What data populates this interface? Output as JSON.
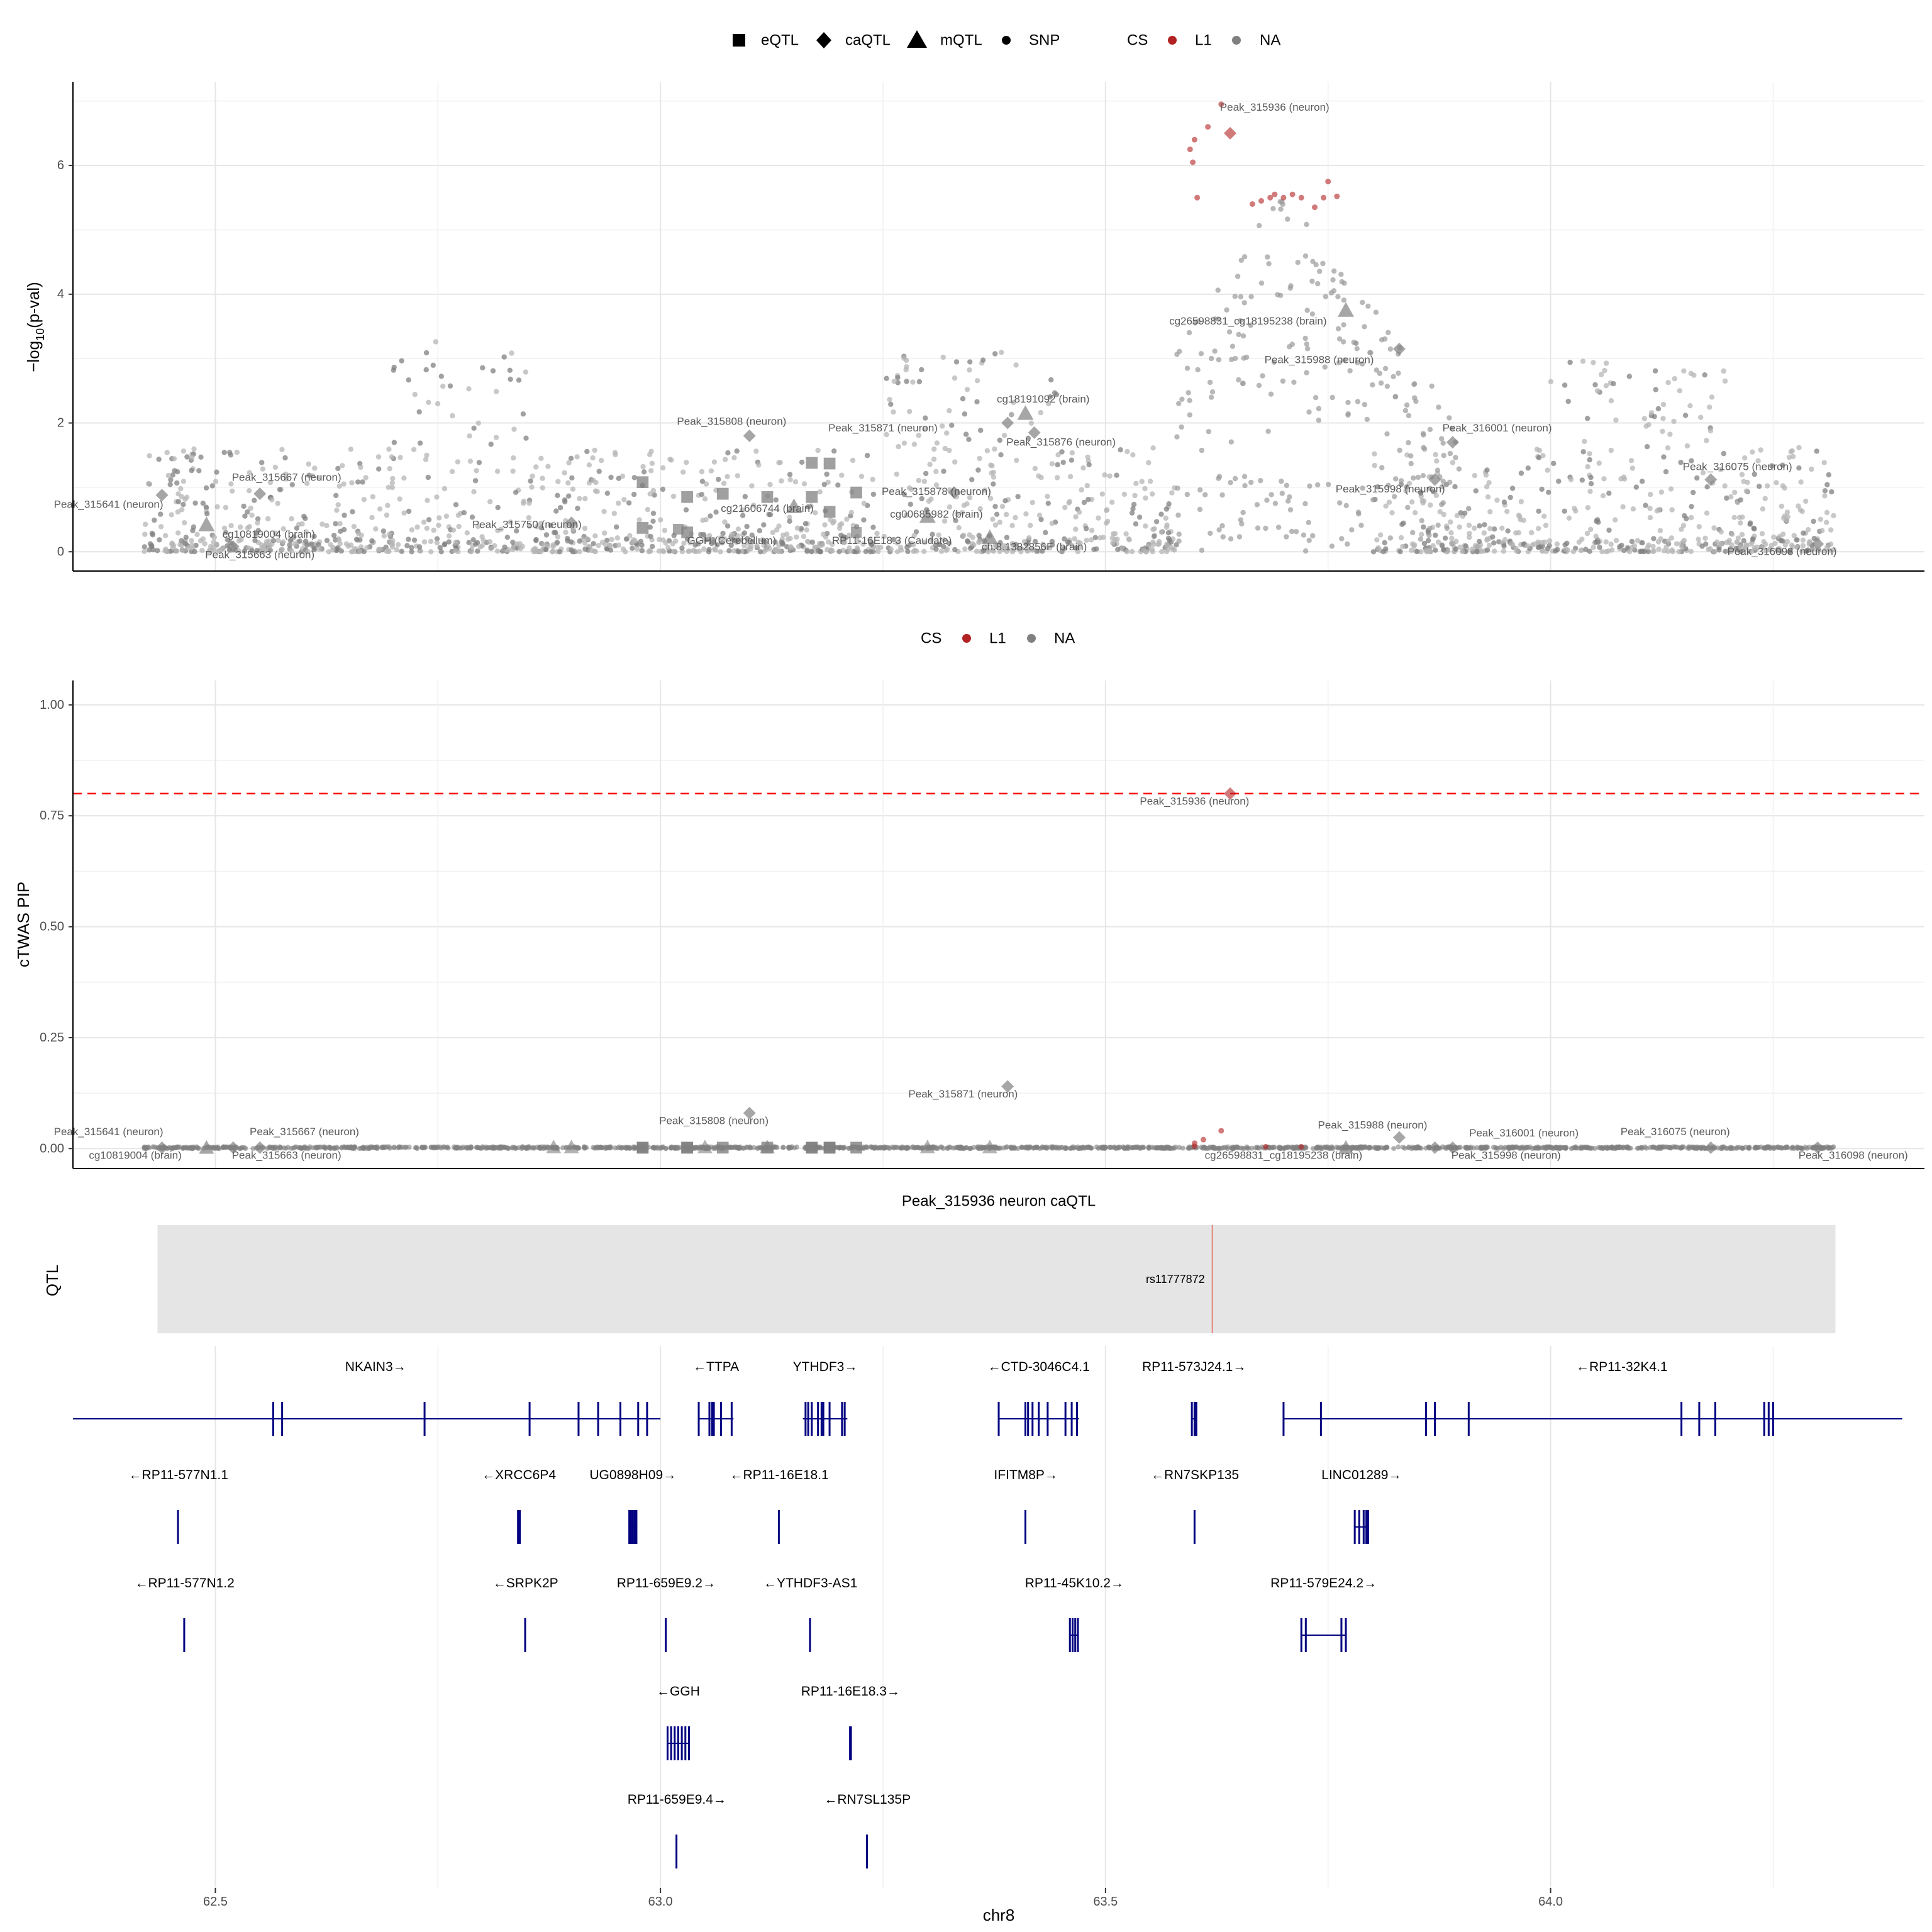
{
  "chart_data": {
    "type": "scatter",
    "x_axis": {
      "label": "chr8",
      "ticks": [
        62.5,
        63.0,
        63.5,
        64.0
      ],
      "tick_labels": [
        "62.5",
        "63.0",
        "63.5",
        "64.0"
      ],
      "range": [
        62.34,
        64.42
      ]
    },
    "colors": {
      "cs_L1": "#b22222",
      "cs_NA": "#808080",
      "threshold": "#ff0000",
      "gene": "#000080",
      "qtl_fill": "#e5e5e5",
      "qtl_snp": "#e8847a"
    },
    "legend_top": {
      "shapes": [
        {
          "label": "eQTL",
          "shape": "square"
        },
        {
          "label": "caQTL",
          "shape": "diamond"
        },
        {
          "label": "mQTL",
          "shape": "triangle"
        },
        {
          "label": "SNP",
          "shape": "dot"
        }
      ],
      "cs_title": "CS",
      "cs": [
        {
          "label": "L1",
          "color": "#b22222"
        },
        {
          "label": "NA",
          "color": "#808080"
        }
      ]
    },
    "legend_mid": {
      "cs_title": "CS",
      "cs": [
        {
          "label": "L1",
          "color": "#b22222"
        },
        {
          "label": "NA",
          "color": "#808080"
        }
      ]
    },
    "panel1": {
      "ylabel": "−log10(p-val)",
      "ylim": [
        -0.3,
        7.3
      ],
      "yticks": [
        0,
        2,
        4,
        6
      ],
      "ytick_labels": [
        "0",
        "2",
        "4",
        "6"
      ],
      "features": [
        {
          "label": "Peak_315936 (neuron)",
          "x": 63.64,
          "y": 6.5,
          "shape": "diamond",
          "cs": "L1",
          "lx": 63.69,
          "ly": 6.85
        },
        {
          "label": "cg26598831_cg18195238 (brain)",
          "x": 63.77,
          "y": 3.75,
          "shape": "triangle",
          "cs": "NA",
          "lx": 63.66,
          "ly": 3.53
        },
        {
          "label": "Peak_315988 (neuron)",
          "x": 63.83,
          "y": 3.15,
          "shape": "diamond",
          "cs": "NA",
          "lx": 63.74,
          "ly": 2.93
        },
        {
          "label": "cg18191092 (brain)",
          "x": 63.41,
          "y": 2.15,
          "shape": "triangle",
          "cs": "NA",
          "lx": 63.43,
          "ly": 2.32
        },
        {
          "label": "Peak_315808 (neuron)",
          "x": 63.1,
          "y": 1.8,
          "shape": "diamond",
          "cs": "NA",
          "lx": 63.08,
          "ly": 1.97
        },
        {
          "label": "Peak_315871 (neuron)",
          "x": 63.39,
          "y": 2.0,
          "shape": "diamond",
          "cs": "NA",
          "lx": 63.25,
          "ly": 1.87
        },
        {
          "label": "Peak_315876 (neuron)",
          "x": 63.42,
          "y": 1.85,
          "shape": "diamond",
          "cs": "NA",
          "lx": 63.45,
          "ly": 1.65
        },
        {
          "label": "Peak_316001 (neuron)",
          "x": 63.89,
          "y": 1.7,
          "shape": "diamond",
          "cs": "NA",
          "lx": 63.94,
          "ly": 1.87
        },
        {
          "label": "Peak_316075 (neuron)",
          "x": 64.18,
          "y": 1.12,
          "shape": "diamond",
          "cs": "NA",
          "lx": 64.21,
          "ly": 1.27
        },
        {
          "label": "Peak_315667 (neuron)",
          "x": 62.55,
          "y": 0.9,
          "shape": "diamond",
          "cs": "NA",
          "lx": 62.58,
          "ly": 1.1
        },
        {
          "label": "Peak_315641 (neuron)",
          "x": 62.44,
          "y": 0.88,
          "shape": "diamond",
          "cs": "NA",
          "lx": 62.38,
          "ly": 0.68
        },
        {
          "label": "Peak_315998 (neuron)",
          "x": 63.87,
          "y": 1.12,
          "shape": "diamond",
          "cs": "NA",
          "lx": 63.82,
          "ly": 0.92
        },
        {
          "label": "Peak_315878 (neuron)",
          "x": 63.33,
          "y": 0.92,
          "shape": "diamond",
          "cs": "NA",
          "lx": 63.31,
          "ly": 0.88
        },
        {
          "label": "cg21606744 (brain)",
          "x": 63.15,
          "y": 0.7,
          "shape": "triangle",
          "cs": "NA",
          "lx": 63.12,
          "ly": 0.62
        },
        {
          "label": "cg00685982 (brain)",
          "x": 63.3,
          "y": 0.55,
          "shape": "triangle",
          "cs": "NA",
          "lx": 63.31,
          "ly": 0.53
        },
        {
          "label": "Peak_315750 (neuron)",
          "x": 62.9,
          "y": 0.45,
          "shape": "diamond",
          "cs": "NA",
          "lx": 62.85,
          "ly": 0.37
        },
        {
          "label": "cg10819004 (brain)",
          "x": 62.49,
          "y": 0.42,
          "shape": "triangle",
          "cs": "NA",
          "lx": 62.56,
          "ly": 0.22
        },
        {
          "label": "GGH (Cerebellum)",
          "x": 63.02,
          "y": 0.35,
          "shape": "square",
          "cs": "NA",
          "lx": 63.08,
          "ly": 0.12
        },
        {
          "label": "RP11-16E18.3 (Caudate)",
          "x": 63.22,
          "y": 0.3,
          "shape": "square",
          "cs": "NA",
          "lx": 63.26,
          "ly": 0.12
        },
        {
          "label": "ch.8.1382856F (brain)",
          "x": 63.37,
          "y": 0.22,
          "shape": "triangle",
          "cs": "NA",
          "lx": 63.42,
          "ly": 0.02
        },
        {
          "label": "Peak_315663 (neuron)",
          "x": 62.52,
          "y": 0.08,
          "shape": "diamond",
          "cs": "NA",
          "lx": 62.55,
          "ly": -0.1
        },
        {
          "label": "Peak_316098 (neuron)",
          "x": 64.3,
          "y": 0.12,
          "shape": "diamond",
          "cs": "NA",
          "lx": 64.26,
          "ly": -0.05
        }
      ],
      "eqtl_squares": [
        {
          "x": 62.98,
          "y": 1.08
        },
        {
          "x": 63.03,
          "y": 0.85
        },
        {
          "x": 63.07,
          "y": 0.9
        },
        {
          "x": 63.12,
          "y": 0.85
        },
        {
          "x": 63.17,
          "y": 1.38
        },
        {
          "x": 63.19,
          "y": 1.37
        },
        {
          "x": 63.22,
          "y": 0.92
        },
        {
          "x": 63.19,
          "y": 0.62
        },
        {
          "x": 62.98,
          "y": 0.37
        },
        {
          "x": 63.17,
          "y": 0.85
        },
        {
          "x": 63.03,
          "y": 0.3
        }
      ]
    },
    "panel2": {
      "ylabel": "cTWAS PIP",
      "ylim": [
        -0.045,
        1.055
      ],
      "yticks": [
        0,
        0.25,
        0.5,
        0.75,
        1.0
      ],
      "ytick_labels": [
        "0.00",
        "0.25",
        "0.50",
        "0.75",
        "1.00"
      ],
      "threshold": 0.8,
      "features": [
        {
          "label": "Peak_315936 (neuron)",
          "x": 63.64,
          "y": 0.8,
          "shape": "diamond",
          "cs": "L1",
          "lx": 63.6,
          "ly": 0.775
        },
        {
          "label": "Peak_315871 (neuron)",
          "x": 63.39,
          "y": 0.14,
          "shape": "diamond",
          "cs": "NA",
          "lx": 63.34,
          "ly": 0.115
        },
        {
          "label": "Peak_315808 (neuron)",
          "x": 63.1,
          "y": 0.08,
          "shape": "diamond",
          "cs": "NA",
          "lx": 63.06,
          "ly": 0.055
        },
        {
          "label": "Peak_315988 (neuron)",
          "x": 63.83,
          "y": 0.025,
          "shape": "diamond",
          "cs": "NA",
          "lx": 63.8,
          "ly": 0.045
        },
        {
          "label": "Peak_315641 (neuron)",
          "x": 62.44,
          "y": 0.002,
          "shape": "diamond",
          "cs": "NA",
          "lx": 62.38,
          "ly": 0.03
        },
        {
          "label": "Peak_315667 (neuron)",
          "x": 62.55,
          "y": 0.002,
          "shape": "diamond",
          "cs": "NA",
          "lx": 62.6,
          "ly": 0.03
        },
        {
          "label": "Peak_316001 (neuron)",
          "x": 63.89,
          "y": 0.002,
          "shape": "diamond",
          "cs": "NA",
          "lx": 63.97,
          "ly": 0.027
        },
        {
          "label": "Peak_316075 (neuron)",
          "x": 64.18,
          "y": 0.002,
          "shape": "diamond",
          "cs": "NA",
          "lx": 64.14,
          "ly": 0.03
        },
        {
          "label": "cg10819004 (brain)",
          "x": 62.49,
          "y": 0.002,
          "shape": "triangle",
          "cs": "NA",
          "lx": 62.41,
          "ly": -0.023
        },
        {
          "label": "Peak_315663 (neuron)",
          "x": 62.52,
          "y": 0.002,
          "shape": "diamond",
          "cs": "NA",
          "lx": 62.58,
          "ly": -0.023
        },
        {
          "label": "cg26598831_cg18195238 (brain)",
          "x": 63.77,
          "y": 0.002,
          "shape": "triangle",
          "cs": "NA",
          "lx": 63.7,
          "ly": -0.023
        },
        {
          "label": "Peak_315998 (neuron)",
          "x": 63.87,
          "y": 0.002,
          "shape": "diamond",
          "cs": "NA",
          "lx": 63.95,
          "ly": -0.023
        },
        {
          "label": "Peak_316098 (neuron)",
          "x": 64.3,
          "y": 0.002,
          "shape": "diamond",
          "cs": "NA",
          "lx": 64.34,
          "ly": -0.023
        }
      ]
    },
    "qtl_track": {
      "title": "Peak_315936 neuron caQTL",
      "ylabel": "QTL",
      "range": [
        62.435,
        64.32
      ],
      "snp": {
        "label": "rs11777872",
        "x": 63.62
      }
    },
    "genes": [
      {
        "name": "NKAIN3",
        "dir": "+",
        "row": 0,
        "start": 62.34,
        "end": 63.0,
        "exons": [
          62.565,
          62.575,
          62.735,
          62.853,
          62.908,
          62.93,
          62.955,
          62.975,
          62.985
        ]
      },
      {
        "name": "TTPA",
        "dir": "-",
        "row": 0,
        "start": 63.043,
        "end": 63.082,
        "exons": [
          63.043,
          63.055,
          63.058,
          63.06,
          63.068,
          63.08
        ]
      },
      {
        "name": "YTHDF3",
        "dir": "+",
        "row": 0,
        "start": 63.16,
        "end": 63.21,
        "exons": [
          63.163,
          63.166,
          63.17,
          63.177,
          63.181,
          63.183,
          63.19,
          63.204,
          63.207
        ]
      },
      {
        "name": "CTD-3046C4.1",
        "dir": "-",
        "row": 0,
        "start": 63.38,
        "end": 63.47,
        "exons": [
          63.38,
          63.41,
          63.413,
          63.418,
          63.425,
          63.435,
          63.455,
          63.462,
          63.468
        ]
      },
      {
        "name": "RP11-573J24.1",
        "dir": "+",
        "row": 0,
        "start": 63.597,
        "end": 63.602,
        "exons": [
          63.597,
          63.6,
          63.602
        ]
      },
      {
        "name": "RP11-32K4.1",
        "dir": "-",
        "row": 0,
        "start": 63.7,
        "end": 64.395,
        "exons": [
          63.7,
          63.742,
          63.86,
          63.87,
          63.908,
          64.147,
          64.167,
          64.185,
          64.24,
          64.245,
          64.25
        ]
      },
      {
        "name": "RP11-577N1.1",
        "dir": "-",
        "row": 1,
        "start": 62.458,
        "end": 62.459,
        "exons": [
          62.458
        ]
      },
      {
        "name": "XRCC6P4",
        "dir": "-",
        "row": 1,
        "start": 62.84,
        "end": 62.842,
        "exons": [
          62.84,
          62.842
        ]
      },
      {
        "name": "UG0898H09",
        "dir": "+",
        "row": 1,
        "start": 62.965,
        "end": 62.973,
        "exons": [
          62.965,
          62.967,
          62.969,
          62.971,
          62.973
        ]
      },
      {
        "name": "RP11-16E18.1",
        "dir": "-",
        "row": 1,
        "start": 63.133,
        "end": 63.134,
        "exons": [
          63.133
        ]
      },
      {
        "name": "IFITM8P",
        "dir": "+",
        "row": 1,
        "start": 63.41,
        "end": 63.411,
        "exons": [
          63.41
        ]
      },
      {
        "name": "RN7SKP135",
        "dir": "-",
        "row": 1,
        "start": 63.6,
        "end": 63.601,
        "exons": [
          63.6
        ]
      },
      {
        "name": "LINC01289",
        "dir": "+",
        "row": 1,
        "start": 63.78,
        "end": 63.795,
        "exons": [
          63.78,
          63.785,
          63.79,
          63.793,
          63.795
        ]
      },
      {
        "name": "RP11-577N1.2",
        "dir": "-",
        "row": 2,
        "start": 62.465,
        "end": 62.466,
        "exons": [
          62.465
        ]
      },
      {
        "name": "SRPK2P",
        "dir": "-",
        "row": 2,
        "start": 62.848,
        "end": 62.849,
        "exons": [
          62.848
        ]
      },
      {
        "name": "RP11-659E9.2",
        "dir": "+",
        "row": 2,
        "start": 63.006,
        "end": 63.007,
        "exons": [
          63.006
        ]
      },
      {
        "name": "YTHDF3-AS1",
        "dir": "-",
        "row": 2,
        "start": 63.168,
        "end": 63.169,
        "exons": [
          63.168
        ]
      },
      {
        "name": "RP11-45K10.2",
        "dir": "+",
        "row": 2,
        "start": 63.46,
        "end": 63.47,
        "exons": [
          63.46,
          63.463,
          63.466,
          63.469
        ]
      },
      {
        "name": "RP11-579E24.2",
        "dir": "+",
        "row": 2,
        "start": 63.72,
        "end": 63.77,
        "exons": [
          63.72,
          63.725,
          63.765,
          63.77
        ]
      },
      {
        "name": "GGH",
        "dir": "-",
        "row": 3,
        "start": 63.008,
        "end": 63.032,
        "exons": [
          63.008,
          63.012,
          63.016,
          63.02,
          63.024,
          63.028,
          63.032
        ]
      },
      {
        "name": "RP11-16E18.3",
        "dir": "+",
        "row": 3,
        "start": 63.213,
        "end": 63.214,
        "exons": [
          63.213,
          63.214
        ]
      },
      {
        "name": "RP11-659E9.4",
        "dir": "+",
        "row": 4,
        "start": 63.018,
        "end": 63.019,
        "exons": [
          63.018
        ]
      },
      {
        "name": "RN7SL135P",
        "dir": "-",
        "row": 4,
        "start": 63.232,
        "end": 63.233,
        "exons": [
          63.232
        ]
      }
    ]
  }
}
